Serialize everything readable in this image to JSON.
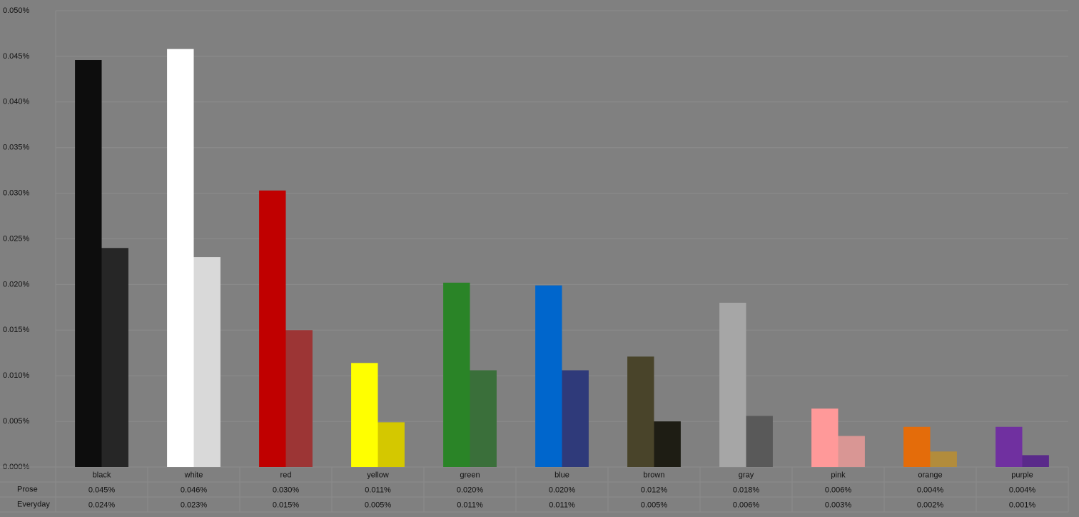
{
  "chart_data": {
    "type": "bar",
    "categories": [
      "black",
      "white",
      "red",
      "yellow",
      "green",
      "blue",
      "brown",
      "gray",
      "pink",
      "orange",
      "purple"
    ],
    "series": [
      {
        "name": "Prose",
        "colors": [
          "#0d0d0d",
          "#ffffff",
          "#c00000",
          "#ffff00",
          "#2a8427",
          "#0066cc",
          "#49442a",
          "#a6a6a6",
          "#ff9999",
          "#e46c0a",
          "#7030a0"
        ],
        "values": [
          0.0446,
          0.0458,
          0.0303,
          0.0114,
          0.0202,
          0.0199,
          0.0121,
          0.018,
          0.0064,
          0.0044,
          0.0044
        ],
        "value_labels": [
          "0.045%",
          "0.046%",
          "0.030%",
          "0.011%",
          "0.020%",
          "0.020%",
          "0.012%",
          "0.018%",
          "0.006%",
          "0.004%",
          "0.004%"
        ]
      },
      {
        "name": "Everyday",
        "colors": [
          "#262626",
          "#d9d9d9",
          "#9c3535",
          "#d4c800",
          "#3a6f3a",
          "#2f3a7a",
          "#1e1d14",
          "#595959",
          "#d99694",
          "#b28c3c",
          "#5a2a8a"
        ],
        "values": [
          0.024,
          0.023,
          0.015,
          0.0049,
          0.0106,
          0.0106,
          0.005,
          0.0056,
          0.0034,
          0.0017,
          0.0013
        ],
        "value_labels": [
          "0.024%",
          "0.023%",
          "0.015%",
          "0.005%",
          "0.011%",
          "0.011%",
          "0.005%",
          "0.006%",
          "0.003%",
          "0.002%",
          "0.001%"
        ]
      }
    ],
    "ylim": [
      0,
      0.05
    ],
    "yticks": [
      {
        "value": 0,
        "label": "0.000%"
      },
      {
        "value": 0.005,
        "label": "0.005%"
      },
      {
        "value": 0.01,
        "label": "0.010%"
      },
      {
        "value": 0.015,
        "label": "0.015%"
      },
      {
        "value": 0.02,
        "label": "0.020%"
      },
      {
        "value": 0.025,
        "label": "0.025%"
      },
      {
        "value": 0.03,
        "label": "0.030%"
      },
      {
        "value": 0.035,
        "label": "0.035%"
      },
      {
        "value": 0.04,
        "label": "0.040%"
      },
      {
        "value": 0.045,
        "label": "0.045%"
      },
      {
        "value": 0.05,
        "label": "0.050%"
      }
    ],
    "grid": true
  }
}
